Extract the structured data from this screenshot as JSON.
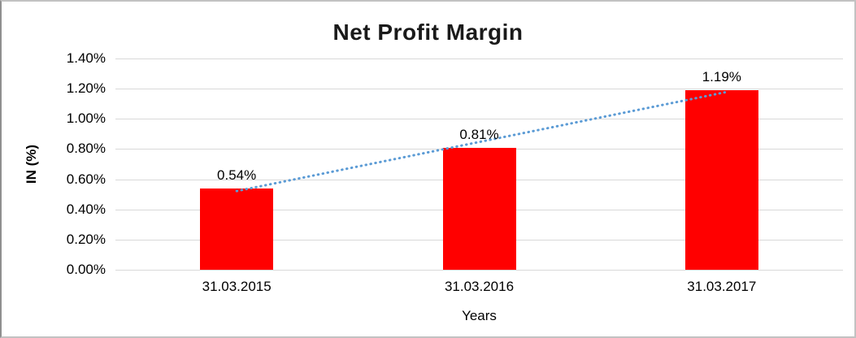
{
  "chart_data": {
    "type": "bar",
    "title": "Net Profit Margin",
    "xlabel": "Years",
    "ylabel": "IN (%)",
    "categories": [
      "31.03.2015",
      "31.03.2016",
      "31.03.2017"
    ],
    "values": [
      0.54,
      0.81,
      1.19
    ],
    "data_labels": [
      "0.54%",
      "0.81%",
      "1.19%"
    ],
    "ylim": [
      0,
      1.4
    ],
    "ytick_step": 0.2,
    "ytick_labels": [
      "0.00%",
      "0.20%",
      "0.40%",
      "0.60%",
      "0.80%",
      "1.00%",
      "1.20%",
      "1.40%"
    ],
    "grid": true,
    "legend": "none",
    "bar_color": "#ff0000",
    "gridline_color": "#d9d9d9",
    "trendline": {
      "type": "linear",
      "style": "dotted",
      "color": "#5b9bd5"
    }
  }
}
